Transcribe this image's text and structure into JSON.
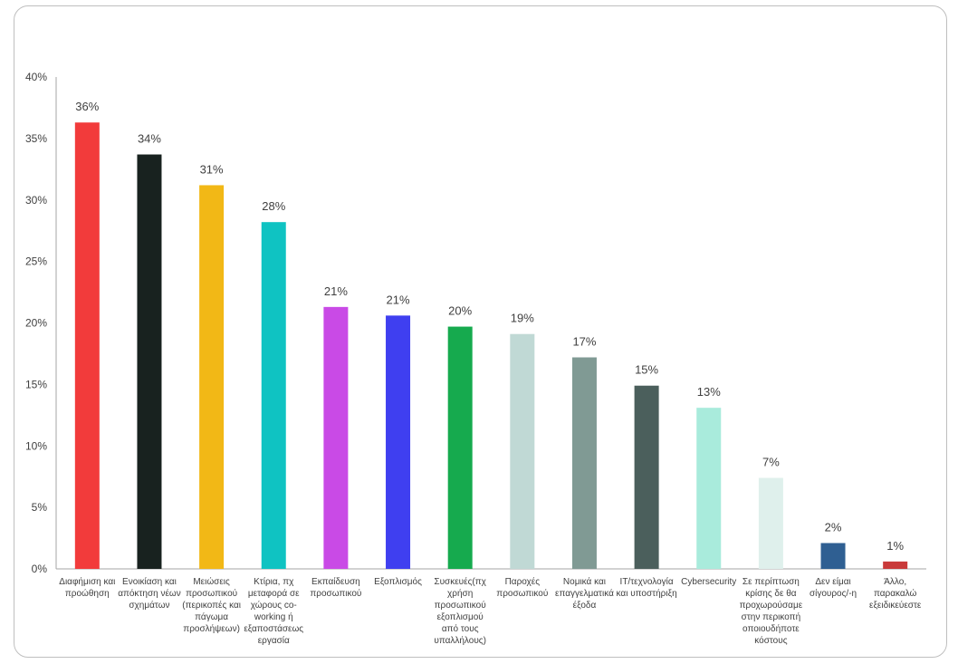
{
  "chart_data": {
    "type": "bar",
    "title": "",
    "xlabel": "",
    "ylabel": "",
    "ylim": [
      0,
      40
    ],
    "yticks": [
      "0%",
      "5%",
      "10%",
      "15%",
      "20%",
      "25%",
      "30%",
      "35%",
      "40%"
    ],
    "grid": false,
    "legend": "none",
    "categories": [
      [
        "Διαφήμιση και",
        "προώθηση"
      ],
      [
        "Ενοικίαση και",
        "απόκτηση νέων",
        "σχημάτων"
      ],
      [
        "Μειώσεις",
        "προσωπικού",
        "(περικοπές και",
        "πάγωμα",
        "προσλήψεων)"
      ],
      [
        "Κτίρια, πχ",
        "μεταφορά σε",
        "χώρους co-",
        "working ή",
        "εξαποστάσεως",
        "εργασία"
      ],
      [
        "Εκπαίδευση",
        "προσωπικού"
      ],
      [
        "Εξοπλισμός"
      ],
      [
        "Συσκευές(πχ",
        "χρήση",
        "προσωπικού",
        "εξοπλισμού",
        "από τους",
        "υπαλλήλους)"
      ],
      [
        "Παροχές",
        "προσωπικού"
      ],
      [
        "Νομικά και",
        "επαγγελματικά",
        "έξοδα"
      ],
      [
        "IT/τεχνολογία",
        "και υποστήριξη"
      ],
      [
        "Cybersecurity"
      ],
      [
        "Σε περίπτωση",
        "κρίσης δε θα",
        "προχωρούσαμε",
        "στην περικοπή",
        "οποιουδήποτε",
        "κόστους"
      ],
      [
        "Δεν είμαι",
        "σίγουρος/-η"
      ],
      [
        "Άλλο,",
        "παρακαλώ",
        "εξειδικεύεστε"
      ]
    ],
    "values": [
      36.3,
      33.7,
      31.2,
      28.2,
      21.3,
      20.6,
      19.7,
      19.1,
      17.2,
      14.9,
      13.1,
      7.4,
      2.1,
      0.6
    ],
    "data_labels": [
      "36%",
      "34%",
      "31%",
      "28%",
      "21%",
      "21%",
      "20%",
      "19%",
      "17%",
      "15%",
      "13%",
      "7%",
      "2%",
      "1%"
    ],
    "colors": [
      "#f23b3b",
      "#18221f",
      "#f2b816",
      "#0fc3c2",
      "#c94ae6",
      "#3f3ff0",
      "#16aa4e",
      "#c0d9d5",
      "#809a94",
      "#4b5f5c",
      "#a9ebdc",
      "#dff0ec",
      "#2f5f92",
      "#c93a3a"
    ]
  }
}
